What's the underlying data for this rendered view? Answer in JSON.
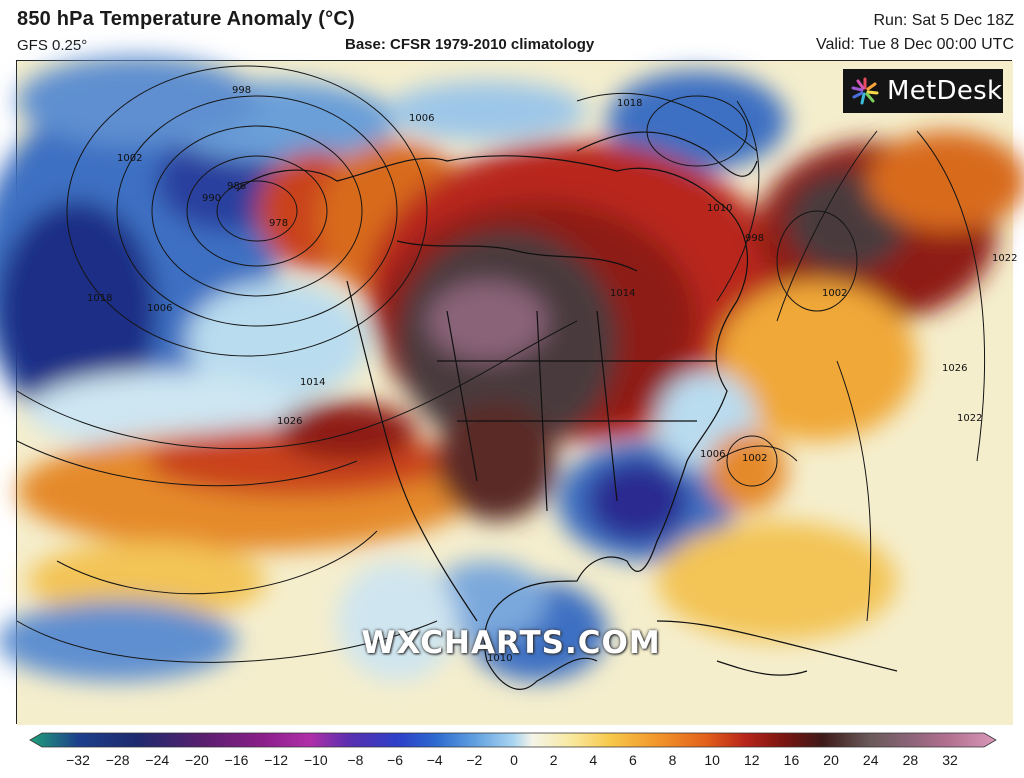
{
  "header": {
    "title": "850 hPa Temperature Anomaly (°C)",
    "model": "GFS 0.25°",
    "base": "Base: CFSR 1979-2010 climatology",
    "run": "Run: Sat 5 Dec 18Z",
    "valid": "Valid: Tue 8 Dec 00:00 UTC"
  },
  "logo": {
    "text": "MetDesk",
    "icon": "metdesk-starburst-icon"
  },
  "watermark": "WXCHARTS.COM",
  "isobar_labels": [
    "998",
    "1006",
    "1018",
    "1002",
    "990",
    "978",
    "986",
    "1010",
    "1014",
    "1026",
    "1018",
    "1022",
    "998",
    "1002",
    "1006",
    "1002",
    "1014",
    "1010",
    "1006",
    "1026",
    "1022"
  ],
  "colorbar": {
    "tick_labels": [
      "−32",
      "−28",
      "−24",
      "−20",
      "−16",
      "−12",
      "−10",
      "−8",
      "−6",
      "−4",
      "−2",
      "0",
      "2",
      "4",
      "6",
      "8",
      "10",
      "12",
      "16",
      "20",
      "24",
      "28",
      "32"
    ],
    "colors": [
      "#1fa07a",
      "#1d3f8c",
      "#1e2a6e",
      "#5a1f6e",
      "#8a1f8a",
      "#b02fa8",
      "#5a2fb0",
      "#2d3fc8",
      "#2d6ad0",
      "#5f9fe0",
      "#a9d4f0",
      "#f4f4ea",
      "#f8e9a0",
      "#f7c94c",
      "#f2952a",
      "#e2601b",
      "#b8251a",
      "#7a1510",
      "#3e1a1a",
      "#6b5a5a",
      "#8a6478",
      "#b2708f",
      "#d998b8"
    ]
  },
  "map": {
    "description_colors": {
      "warm_core": "#4a3a3c",
      "hot": "#8e1c12",
      "warm": "#d86a1c",
      "mild": "#f3c456",
      "neutral": "#f5f1dd",
      "cool": "#a8cfea",
      "cold": "#3d6fc2",
      "very_cold": "#1c2f86"
    }
  }
}
